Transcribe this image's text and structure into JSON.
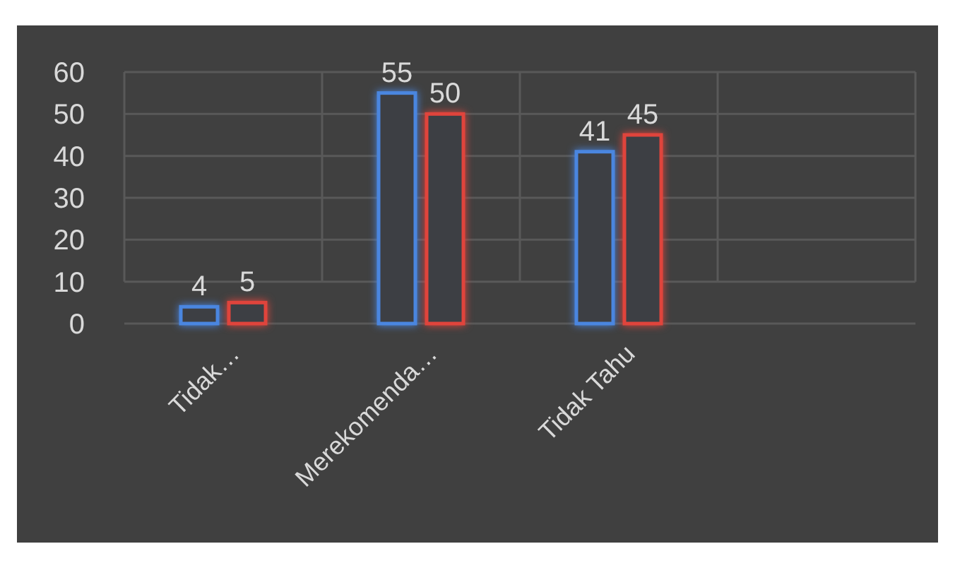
{
  "chart_data": {
    "type": "bar",
    "categories": [
      "Tidak…",
      "Merekomenda…",
      "Tidak Tahu",
      null
    ],
    "series": [
      {
        "color": "#4a86e0",
        "values": [
          4,
          55,
          41,
          null
        ]
      },
      {
        "color": "#e0443c",
        "values": [
          5,
          50,
          45,
          null
        ]
      }
    ],
    "ylim": [
      0,
      60
    ],
    "yticks": [
      0,
      10,
      20,
      30,
      40,
      50,
      60
    ],
    "grid": true,
    "data_labels": true
  }
}
